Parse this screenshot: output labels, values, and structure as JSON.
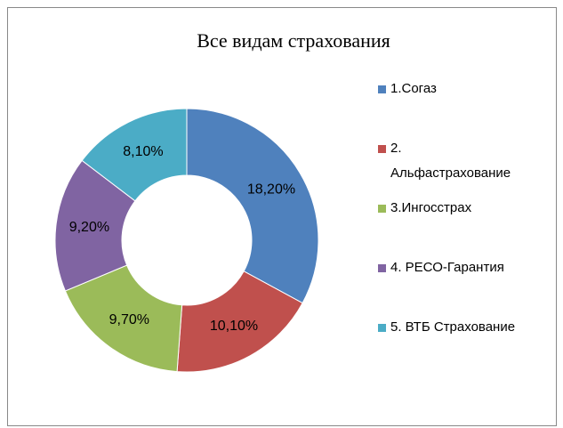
{
  "chart_data": {
    "type": "donut",
    "title": "Все видам страхования",
    "categories": [
      "1.Согаз",
      "2. Альфастрахование",
      "3.Ингосстрах",
      "4. РЕСО-Гарантия",
      "5. ВТБ Страхование"
    ],
    "values": [
      18.2,
      10.1,
      9.7,
      9.2,
      8.1
    ],
    "value_labels": [
      "18,20%",
      "10,10%",
      "9,70%",
      "9,20%",
      "8,10%"
    ],
    "colors": [
      "#4f81bd",
      "#c0504d",
      "#9bbb59",
      "#8064a2",
      "#4bacc6"
    ],
    "legend": "right"
  }
}
